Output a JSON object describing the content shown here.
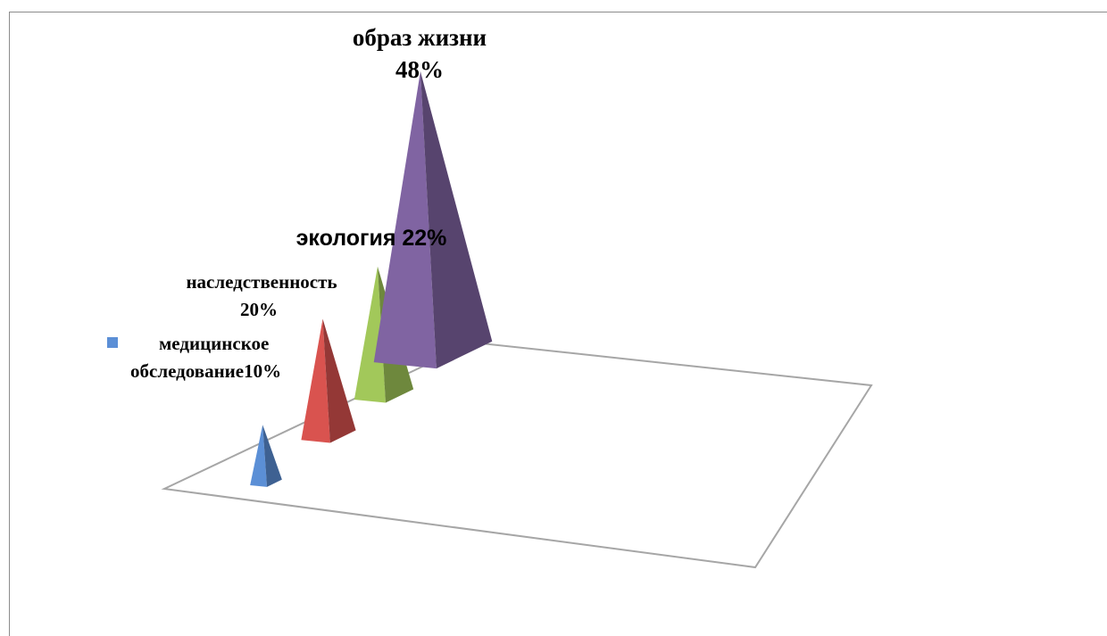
{
  "chart_data": {
    "type": "bar",
    "subtype": "3d-pyramid",
    "grid": false,
    "legend_position": "left",
    "categories": [
      "медицинское обследование",
      "наследственность",
      "экология",
      "образ жизни"
    ],
    "values": [
      10,
      20,
      22,
      48
    ],
    "unit": "%",
    "colors": [
      "#5b8fd6",
      "#d9534f",
      "#a2c85a",
      "#8064a2"
    ],
    "labels": [
      {
        "lines": [
          "медицинское",
          "обследование10%"
        ]
      },
      {
        "lines": [
          "наследственность",
          "20%"
        ]
      },
      {
        "lines": [
          "экология 22%"
        ]
      },
      {
        "lines": [
          "образ жизни",
          "48%"
        ]
      }
    ]
  }
}
